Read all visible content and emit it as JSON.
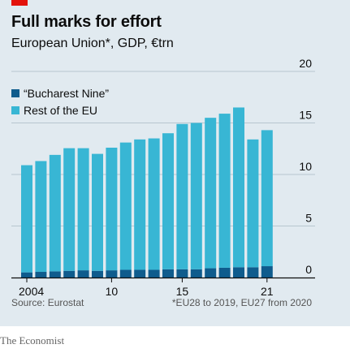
{
  "header": {
    "title": "Full marks for effort",
    "subtitle": "European Union*, GDP, €trn"
  },
  "legend": {
    "items": [
      {
        "label": "“Bucharest Nine”",
        "color": "#0f5c8d"
      },
      {
        "label": "Rest of the EU",
        "color": "#38b6d4"
      }
    ]
  },
  "footer": {
    "source": "Source: Eurostat",
    "note": "*EU28 to 2019, EU27 from 2020",
    "brand": "The Economist"
  },
  "colors": {
    "accent": "#e3120b",
    "background": "#e1eaf0",
    "bucharest": "#0f5c8d",
    "rest": "#38b6d4"
  },
  "chart_data": {
    "type": "bar",
    "stacked": true,
    "x": [
      2004,
      2005,
      2006,
      2007,
      2008,
      2009,
      2010,
      2011,
      2012,
      2013,
      2014,
      2015,
      2016,
      2017,
      2018,
      2019,
      2020,
      2021
    ],
    "series": [
      {
        "name": "“Bucharest Nine”",
        "values": [
          0.5,
          0.55,
          0.6,
          0.65,
          0.7,
          0.65,
          0.7,
          0.75,
          0.75,
          0.75,
          0.8,
          0.8,
          0.8,
          0.9,
          0.95,
          1.0,
          1.0,
          1.1
        ]
      },
      {
        "name": "Rest of the EU",
        "values": [
          10.4,
          10.75,
          11.3,
          11.9,
          11.85,
          11.35,
          11.9,
          12.35,
          12.65,
          12.75,
          13.2,
          14.1,
          14.2,
          14.6,
          14.95,
          15.5,
          12.4,
          13.2
        ]
      }
    ],
    "ylim": [
      0,
      20
    ],
    "yticks": [
      0,
      5,
      10,
      15,
      20
    ],
    "xticks": [
      2004,
      2010,
      2015,
      2021
    ],
    "xtick_labels": [
      "2004",
      "10",
      "15",
      "21"
    ],
    "y_axis_side": "right",
    "grid": true,
    "legend_position": "top-left"
  }
}
